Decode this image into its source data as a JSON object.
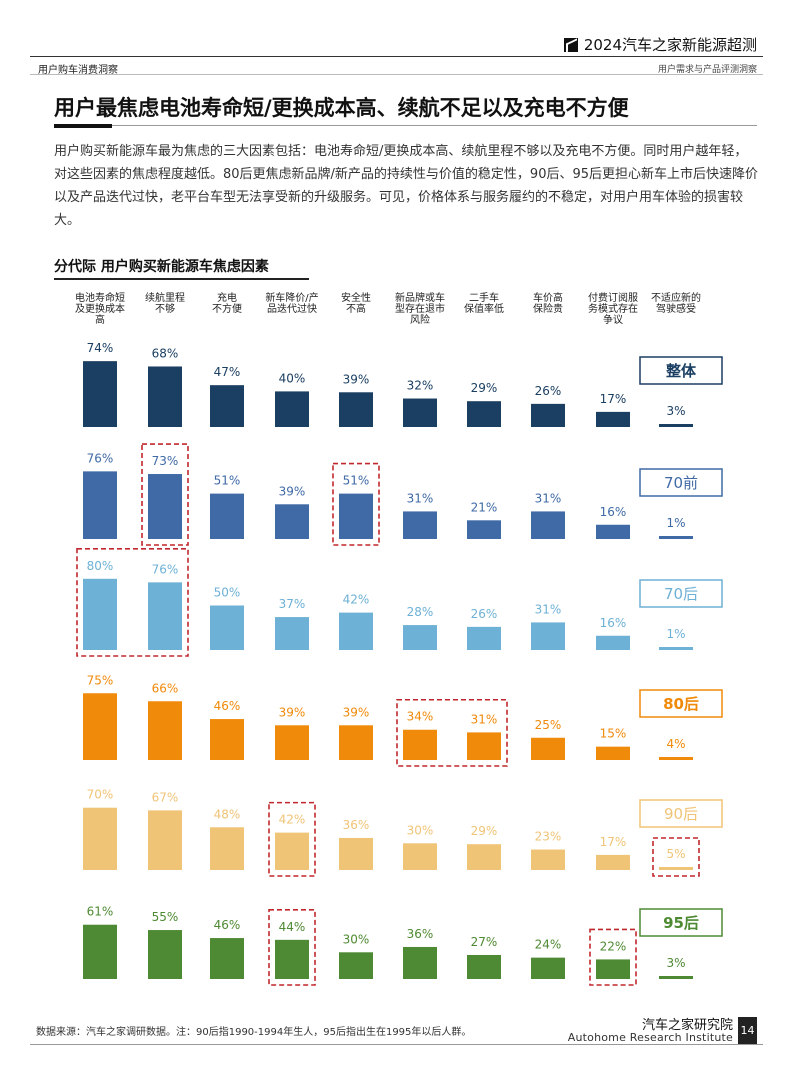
{
  "header": {
    "report_title": "2024汽车之家新能源超测",
    "section_left": "用户购车消费洞察",
    "section_right": "用户需求与产品评测洞察"
  },
  "main_title": "用户最焦虑电池寿命短/更换成本高、续航不足以及充电不方便",
  "intro": "用户购买新能源车最为焦虑的三大因素包括：电池寿命短/更换成本高、续航里程不够以及充电不方便。同时用户越年轻，对这些因素的焦虑程度越低。80后更焦虑新品牌/新产品的持续性与价值的稳定性，90后、95后更担心新车上市后快速降价以及产品迭代过快，老平台车型无法享受新的升级服务。可见，价格体系与服务履约的不稳定，对用户用车体验的损害较大。",
  "chart_data": {
    "type": "bar",
    "title": "分代际 用户购买新能源车焦虑因素",
    "categories": [
      "电池寿命短及更换成本高",
      "续航里程不够",
      "充电不方便",
      "新车降价/产品迭代过快",
      "安全性不高",
      "新品牌或车型存在退市风险",
      "二手车保值率低",
      "车价高保险贵",
      "付费订阅服务模式存在争议",
      "不适应新的驾驶感受"
    ],
    "category_lines": [
      [
        "电池寿命短",
        "及更换成本",
        "高"
      ],
      [
        "续航里程",
        "不够"
      ],
      [
        "充电",
        "不方便"
      ],
      [
        "新车降价/产",
        "品迭代过快"
      ],
      [
        "安全性",
        "不高"
      ],
      [
        "新品牌或车",
        "型存在退市",
        "风险"
      ],
      [
        "二手车",
        "保值率低"
      ],
      [
        "车价高",
        "保险贵"
      ],
      [
        "付费订阅服",
        "务模式存在",
        "争议"
      ],
      [
        "不适应新的",
        "驾驶感受"
      ]
    ],
    "series": [
      {
        "name": "整体",
        "values": [
          74,
          68,
          47,
          40,
          39,
          32,
          29,
          26,
          17,
          3
        ],
        "labels": [
          "74%",
          "68%",
          "47%",
          "40%",
          "39%",
          "32%",
          "29%",
          "26%",
          "17%",
          "3%"
        ],
        "color": "#1b3f62",
        "highlight": []
      },
      {
        "name": "70前",
        "values": [
          76,
          73,
          51,
          39,
          51,
          31,
          21,
          31,
          16,
          1
        ],
        "labels": [
          "76%",
          "73%",
          "51%",
          "39%",
          "51%",
          "31%",
          "21%",
          "31%",
          "16%",
          "1%"
        ],
        "color": "#3f6aa5",
        "highlight": [
          [
            1,
            1
          ],
          [
            4,
            4
          ]
        ]
      },
      {
        "name": "70后",
        "values": [
          80,
          76,
          50,
          37,
          42,
          28,
          26,
          31,
          16,
          1
        ],
        "labels": [
          "80%",
          "76%",
          "50%",
          "37%",
          "42%",
          "28%",
          "26%",
          "31%",
          "16%",
          "1%"
        ],
        "color": "#6eb1d6",
        "highlight": [
          [
            0,
            1
          ]
        ]
      },
      {
        "name": "80后",
        "values": [
          75,
          66,
          46,
          39,
          39,
          34,
          31,
          25,
          15,
          4
        ],
        "labels": [
          "75%",
          "66%",
          "46%",
          "39%",
          "39%",
          "34%",
          "31%",
          "25%",
          "15%",
          "4%"
        ],
        "color": "#f08a0a",
        "highlight": [
          [
            5,
            6
          ]
        ]
      },
      {
        "name": "90后",
        "values": [
          70,
          67,
          48,
          42,
          36,
          30,
          29,
          23,
          17,
          5
        ],
        "labels": [
          "70%",
          "67%",
          "48%",
          "42%",
          "36%",
          "30%",
          "29%",
          "23%",
          "17%",
          "5%"
        ],
        "color": "#f0c477",
        "highlight": [
          [
            3,
            3
          ],
          [
            9,
            9
          ]
        ]
      },
      {
        "name": "95后",
        "values": [
          61,
          55,
          46,
          44,
          30,
          36,
          27,
          24,
          22,
          3
        ],
        "labels": [
          "61%",
          "55%",
          "46%",
          "44%",
          "30%",
          "36%",
          "27%",
          "24%",
          "22%",
          "3%"
        ],
        "color": "#4e8a33",
        "highlight": [
          [
            3,
            3
          ],
          [
            8,
            8
          ]
        ]
      }
    ],
    "ylim": [
      0,
      100
    ],
    "highlight_color": "#c0282d"
  },
  "footer": {
    "source": "数据来源：汽车之家调研数据。注：90后指1990-1994年生人，95后指出生在1995年以后人群。",
    "org": "汽车之家研究院",
    "org_en": "Autohome Research Institute",
    "page_number": "14"
  }
}
